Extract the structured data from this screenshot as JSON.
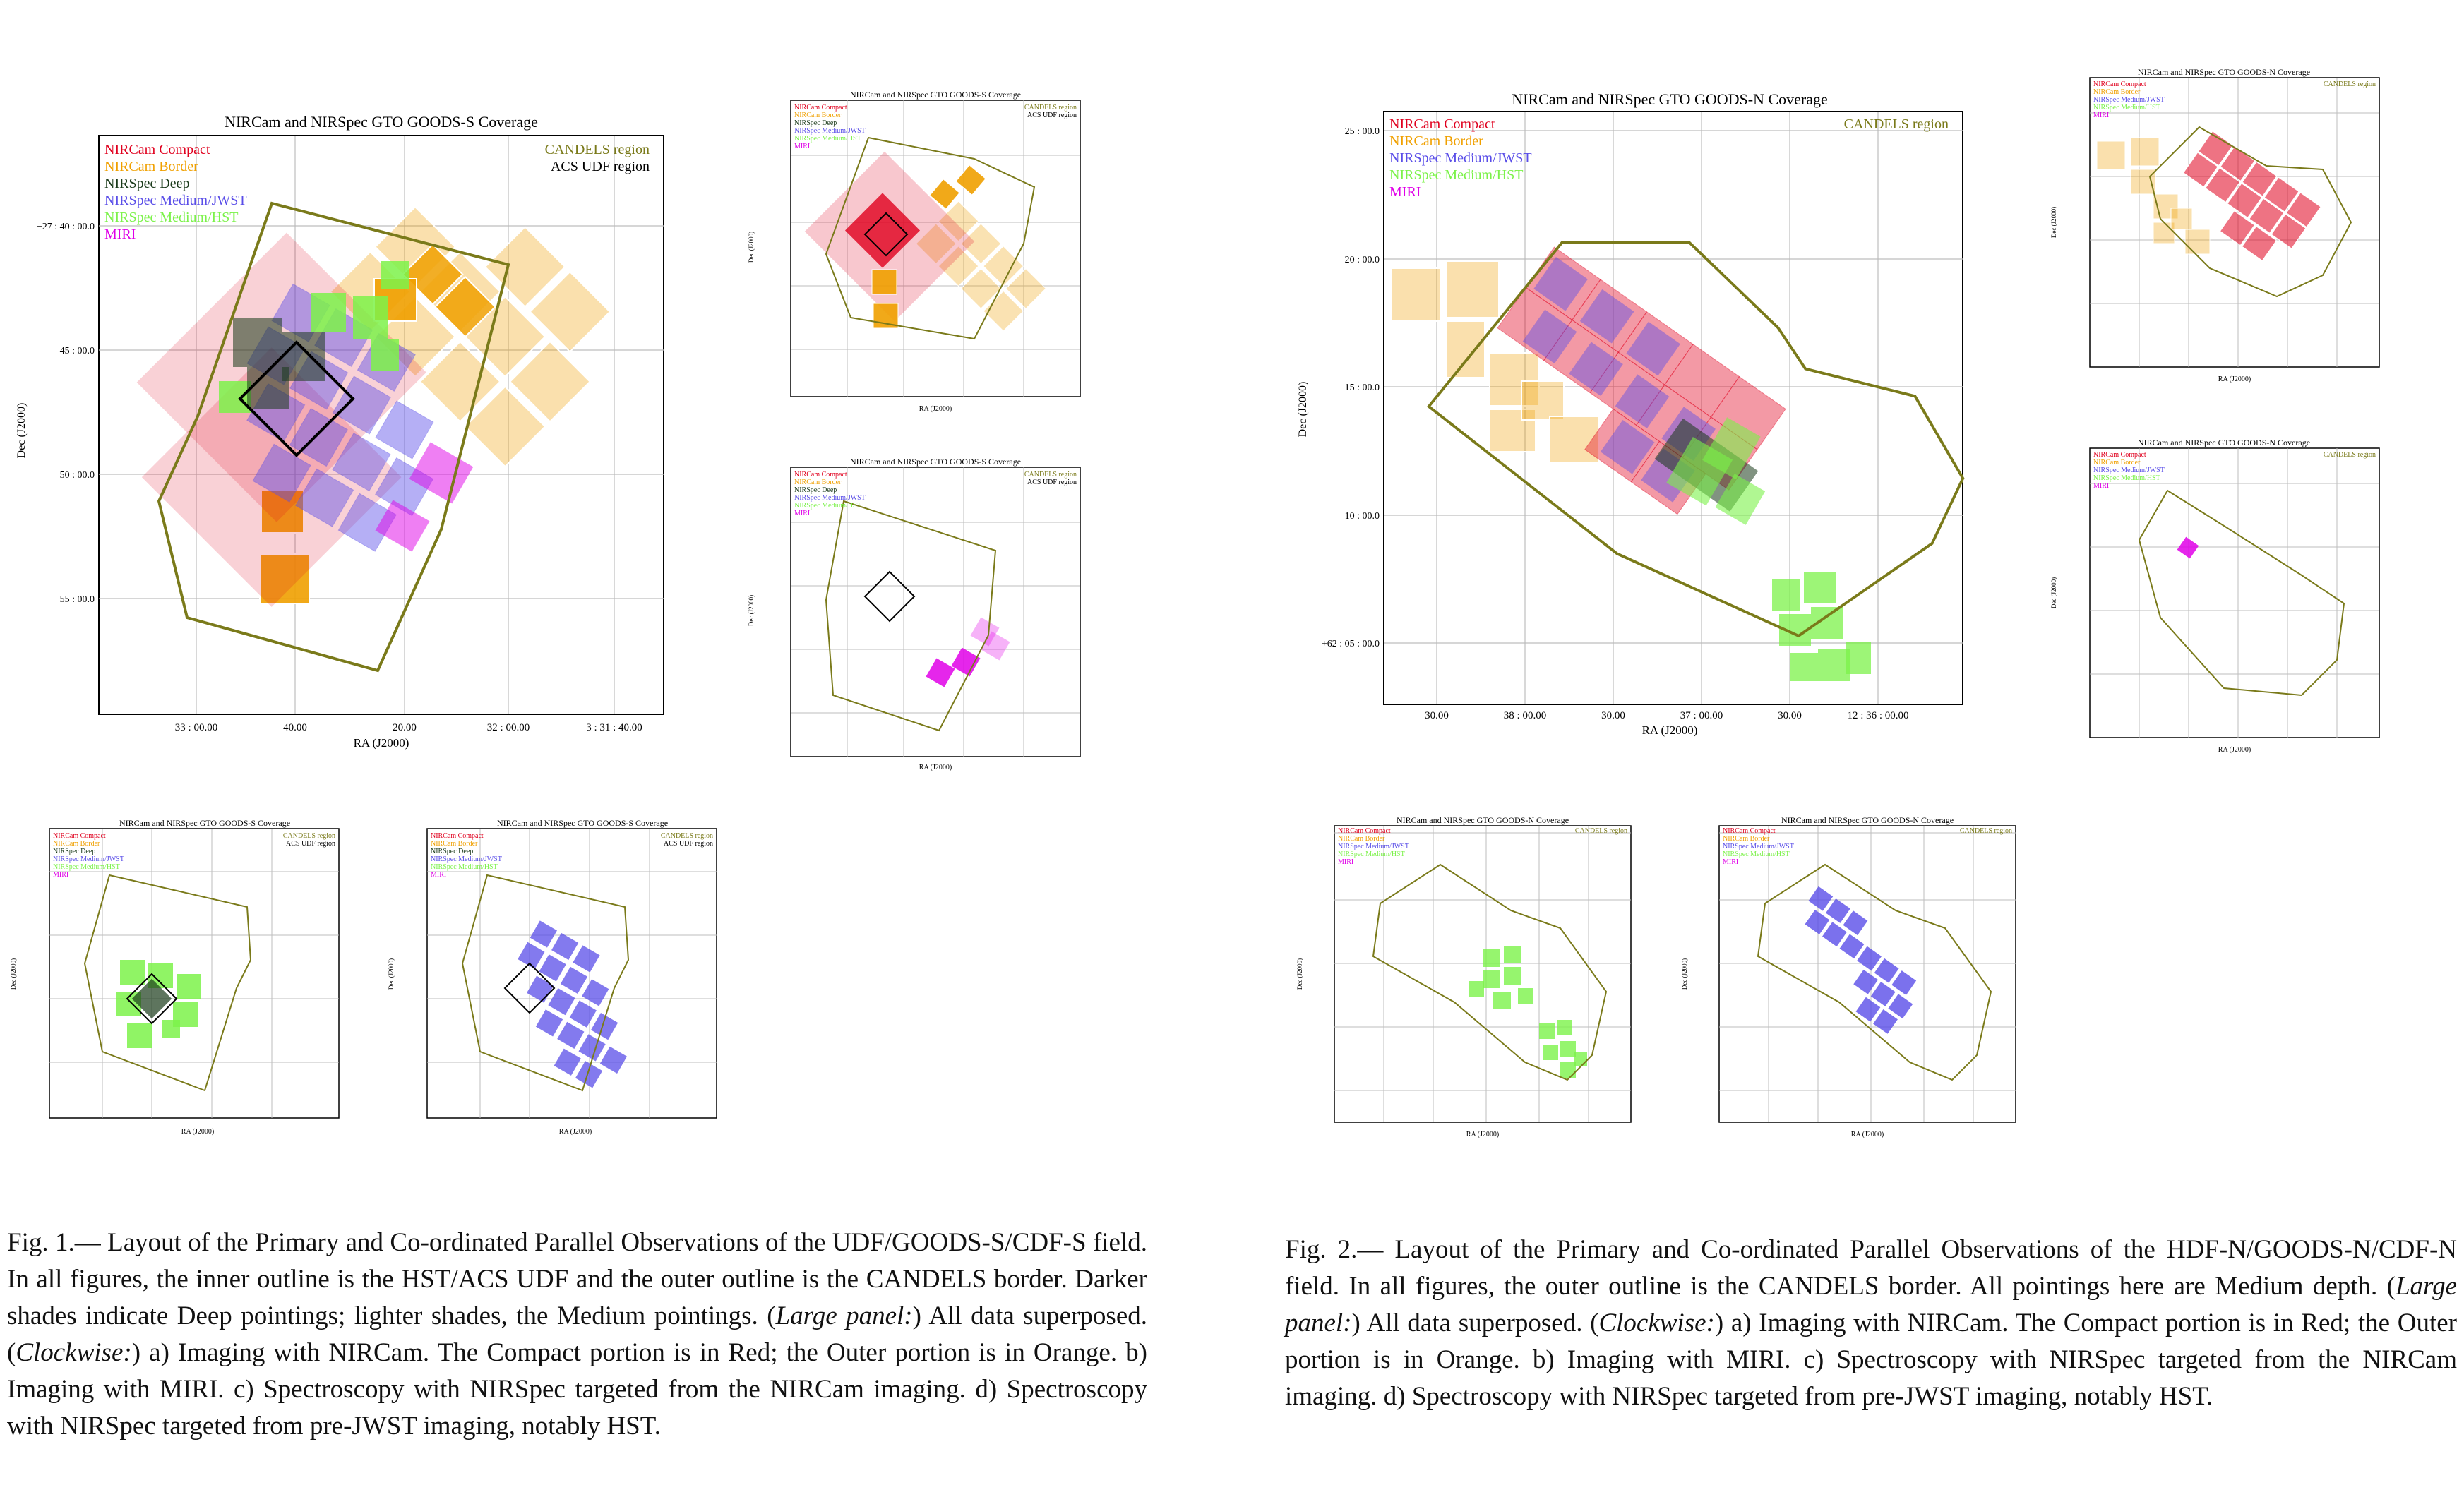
{
  "colors": {
    "compact": "#e0001e",
    "border": "#f0a000",
    "deep": "#1a3a1a",
    "medium_jwst": "#5a4ee8",
    "medium_hst": "#7cf24a",
    "miri": "#e000e8",
    "candels": "#7a7a1a",
    "udf": "#000000",
    "grid": "#bdbdbd",
    "frame": "#000000"
  },
  "south_legend": [
    {
      "text": "NIRCam Compact",
      "color": "#e0001e"
    },
    {
      "text": "NIRCam Border",
      "color": "#f0a000"
    },
    {
      "text": "NIRSpec Deep",
      "color": "#1a3a1a"
    },
    {
      "text": "NIRSpec Medium/JWST",
      "color": "#5a4ee8"
    },
    {
      "text": "NIRSpec Medium/HST",
      "color": "#7cf24a"
    },
    {
      "text": "MIRI",
      "color": "#e000e8"
    }
  ],
  "north_legend_large": [
    {
      "text": "NIRCam Compact",
      "color": "#e0001e"
    },
    {
      "text": "NIRCam Border",
      "color": "#f0a000"
    },
    {
      "text": "NIRSpec Medium/JWST",
      "color": "#5a4ee8"
    },
    {
      "text": "NIRSpec Medium/HST",
      "color": "#7cf24a"
    },
    {
      "text": "MIRI",
      "color": "#e000e8"
    }
  ],
  "north_legend_small": [
    {
      "text": "NIRCam Compact",
      "color": "#e0001e"
    },
    {
      "text": "NIRCam Border",
      "color": "#f0a000"
    },
    {
      "text": "NIRSpec Medium/JWST",
      "color": "#5a4ee8"
    },
    {
      "text": "NIRSpec Medium/HST",
      "color": "#7cf24a"
    },
    {
      "text": "MIRI",
      "color": "#e000e8"
    }
  ],
  "south_right_legend": [
    {
      "text": "CANDELS region",
      "color": "#7a7a1a"
    },
    {
      "text": "ACS UDF region",
      "color": "#000000"
    }
  ],
  "north_right_legend": [
    {
      "text": "CANDELS region",
      "color": "#7a7a1a"
    }
  ],
  "south_axes": {
    "title": "NIRCam and NIRSpec GTO GOODS-S Coverage",
    "xlabel": "RA (J2000)",
    "ylabel": "Dec (J2000)",
    "xticks": [
      "33 : 00.00",
      "40.00",
      "20.00",
      "32 : 00.00",
      "3 : 31 : 40.00"
    ],
    "yticks": [
      "−27 : 40 : 00.0",
      "45 : 00.0",
      "50 : 00.0",
      "55 : 00.0"
    ]
  },
  "north_axes": {
    "title": "NIRCam and NIRSpec GTO GOODS-N Coverage",
    "xlabel": "RA (J2000)",
    "ylabel": "Dec (J2000)",
    "xticks": [
      "30.00",
      "38 : 00.00",
      "30.00",
      "37 : 00.00",
      "30.00",
      "12 : 36 : 00.00"
    ],
    "yticks": [
      "25 : 00.0",
      "20 : 00.0",
      "15 : 00.0",
      "10 : 00.0",
      "+62 : 05 : 00.0"
    ]
  },
  "caption1": {
    "prefix": "Fig.  1.— Layout of the Primary and Co-ordinated Parallel Observations of the UDF/GOODS-S/CDF-S field. In all figures, the inner outline is the HST/ACS UDF and the outer outline is the CANDELS border. Darker shades indicate Deep pointings; lighter shades, the Medium pointings. (",
    "em1": "Large panel:",
    "mid": ") All data superposed. (",
    "em2": "Clockwise:",
    "suffix": ") a) Imaging with NIRCam. The Compact portion is in Red; the Outer portion is in Orange.  b) Imaging with MIRI. c) Spectroscopy with NIRSpec targeted from the NIRCam imaging.  d) Spectroscopy with NIRSpec targeted from pre-JWST imaging, notably HST."
  },
  "caption2": {
    "prefix": "Fig. 2.— Layout of the Primary and Co-ordinated Parallel Observations of the HDF-N/GOODS-N/CDF-N field. In all figures, the outer outline is the CANDELS border. All pointings here are Medium depth. (",
    "em1": "Large panel:",
    "mid": ") All data superposed. (",
    "em2": "Clockwise:",
    "suffix": ") a) Imaging with NIRCam. The Compact portion is in Red; the Outer portion is in Orange. b) Imaging with MIRI. c) Spectroscopy with NIRSpec targeted from the NIRCam imaging. d) Spectroscopy with NIRSpec targeted from pre-JWST imaging, notably HST."
  }
}
